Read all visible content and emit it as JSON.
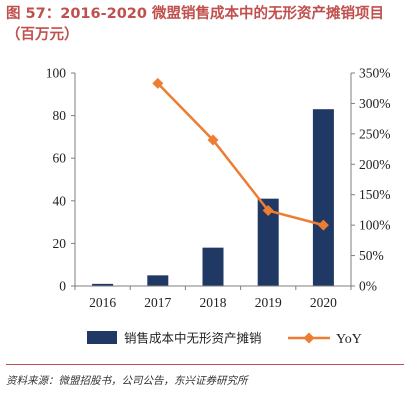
{
  "figure": {
    "title": "图 57：2016-2020 微盟销售成本中的无形资产摊销项目（百万元）",
    "source": "资料来源：微盟招股书，公司公告，东兴证券研究所"
  },
  "colors": {
    "title": "#c0504d",
    "bar": "#1f3864",
    "line": "#ed7d31",
    "axis": "#7f7f7f",
    "divider": "#c0504d"
  },
  "chart_data": {
    "type": "bar+line",
    "categories": [
      "2016",
      "2017",
      "2018",
      "2019",
      "2020"
    ],
    "series": [
      {
        "name": "销售成本中无形资产摊销",
        "type": "bar",
        "axis": "left",
        "values": [
          1,
          5,
          18,
          41,
          83
        ]
      },
      {
        "name": "YoY",
        "type": "line",
        "axis": "right",
        "marker": "diamond",
        "values": [
          null,
          3.33,
          2.4,
          1.24,
          1.0
        ]
      }
    ],
    "y_left": {
      "ylim": [
        0,
        100
      ],
      "ticks": [
        0,
        20,
        40,
        60,
        80,
        100
      ],
      "tick_labels": [
        "0",
        "20",
        "40",
        "60",
        "80",
        "100"
      ]
    },
    "y_right": {
      "ylim": [
        0,
        3.5
      ],
      "ticks": [
        0,
        0.5,
        1.0,
        1.5,
        2.0,
        2.5,
        3.0,
        3.5
      ],
      "tick_labels": [
        "0%",
        "50%",
        "100%",
        "150%",
        "200%",
        "250%",
        "300%",
        "350%"
      ]
    },
    "grid": false,
    "legend": "bottom"
  }
}
